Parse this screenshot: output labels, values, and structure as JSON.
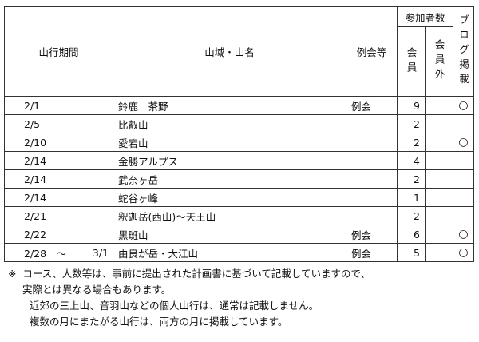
{
  "header": {
    "period": "山行期間",
    "area_name": "山域・山名",
    "event_type": "例会等",
    "participants": "参加者数",
    "members": "会員",
    "non_members": "会員外",
    "blog": "ブログ掲載"
  },
  "rows": [
    {
      "date": "2/1",
      "end": "",
      "name": "鈴鹿　茶野",
      "type": "例会",
      "members": "9",
      "non_members": "",
      "blog": "○"
    },
    {
      "date": "2/5",
      "end": "",
      "name": "比叡山",
      "type": "",
      "members": "2",
      "non_members": "",
      "blog": ""
    },
    {
      "date": "2/10",
      "end": "",
      "name": "愛宕山",
      "type": "",
      "members": "2",
      "non_members": "",
      "blog": "○"
    },
    {
      "date": "2/14",
      "end": "",
      "name": "金勝アルプス",
      "type": "",
      "members": "4",
      "non_members": "",
      "blog": ""
    },
    {
      "date": "2/14",
      "end": "",
      "name": "武奈ヶ岳",
      "type": "",
      "members": "2",
      "non_members": "",
      "blog": ""
    },
    {
      "date": "2/14",
      "end": "",
      "name": "蛇谷ヶ峰",
      "type": "",
      "members": "1",
      "non_members": "",
      "blog": ""
    },
    {
      "date": "2/21",
      "end": "",
      "name": "釈迦岳(西山)～天王山",
      "type": "",
      "members": "2",
      "non_members": "",
      "blog": ""
    },
    {
      "date": "2/22",
      "end": "",
      "name": "黒斑山",
      "type": "例会",
      "members": "6",
      "non_members": "",
      "blog": "○"
    },
    {
      "date": "2/28　～",
      "end": "3/1",
      "name": "由良が岳・大江山",
      "type": "例会",
      "members": "5",
      "non_members": "",
      "blog": "○"
    }
  ],
  "notes": [
    "※  コース、人数等は、事前に提出された計画書に基づいて記載していますので、",
    "実際とは異なる場合もあります。",
    "近郊の三上山、音羽山などの個人山行は、通常は記載しません。",
    "複数の月にまたがる山行は、両方の月に掲載しています。"
  ]
}
